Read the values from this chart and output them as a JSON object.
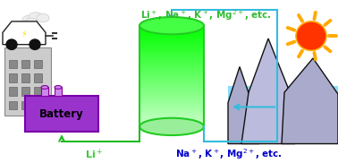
{
  "bg_color": "#ffffff",
  "top_label": "Li$^+$, Na$^+$, K$^+$, Mg$^{2+}$, etc.",
  "top_label_color": "#33bb33",
  "bottom_label_li": "Li$^+$",
  "bottom_label_li_color": "#33cc33",
  "bottom_label_brine": "Na$^+$, K$^+$, Mg$^{2+}$, etc.",
  "bottom_label_brine_color": "#0000cc",
  "battery_color": "#9933cc",
  "battery_edge_color": "#7700aa",
  "battery_text": "Battery",
  "battery_text_color": "#000000",
  "terminal_color": "#cc88ee",
  "terminal_edge": "#880099",
  "building_color": "#cccccc",
  "building_edge": "#888888",
  "window_color": "#888888",
  "car_color": "#ffffff",
  "cloud_color": "#eeeeee",
  "cyl_grad_top": "#00ff00",
  "cyl_grad_bot": "#ccffcc",
  "cyl_edge": "#22cc22",
  "cyl_ellipse_top": "#44ff44",
  "cyl_ellipse_bot": "#99ee99",
  "water_color": "#88ddff",
  "mount1_color": "#aaaacc",
  "mount2_color": "#bbbbdd",
  "mount3_color": "#aaaacc",
  "mount_edge": "#111111",
  "sun_body": "#ff3300",
  "sun_ray": "#ffaa00",
  "flow_cyan": "#33bbdd",
  "flow_green": "#22bb22",
  "arrow_cyan": "#33bbdd",
  "arrow_green": "#22bb22"
}
